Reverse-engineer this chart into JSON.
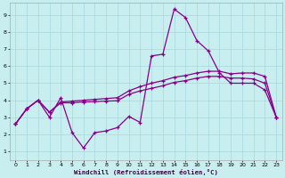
{
  "xlabel": "Windchill (Refroidissement éolien,°C)",
  "bg_color": "#c8eef0",
  "grid_color": "#a8d8dc",
  "line_color": "#880088",
  "xlim": [
    -0.5,
    23.5
  ],
  "ylim": [
    0.5,
    9.7
  ],
  "xticks": [
    0,
    1,
    2,
    3,
    4,
    5,
    6,
    7,
    8,
    9,
    10,
    11,
    12,
    13,
    14,
    15,
    16,
    17,
    18,
    19,
    20,
    21,
    22,
    23
  ],
  "yticks": [
    1,
    2,
    3,
    4,
    5,
    6,
    7,
    8,
    9
  ],
  "line1_x": [
    0,
    1,
    2,
    3,
    4,
    5,
    6,
    7,
    8,
    9,
    10,
    11,
    12,
    13,
    14,
    15,
    16,
    17,
    18,
    19,
    20,
    21,
    22,
    23
  ],
  "line1_y": [
    2.6,
    3.5,
    4.0,
    3.0,
    4.15,
    2.1,
    1.2,
    2.1,
    2.2,
    2.4,
    3.05,
    2.7,
    6.6,
    6.7,
    9.35,
    8.85,
    7.5,
    6.9,
    5.6,
    5.0,
    5.0,
    5.0,
    4.6,
    3.0
  ],
  "line2_x": [
    0,
    1,
    2,
    3,
    4,
    5,
    6,
    7,
    8,
    9,
    10,
    11,
    12,
    13,
    14,
    15,
    16,
    17,
    18,
    19,
    20,
    21,
    22,
    23
  ],
  "line2_y": [
    2.6,
    3.5,
    4.0,
    3.3,
    3.9,
    3.95,
    4.0,
    4.05,
    4.1,
    4.15,
    4.55,
    4.8,
    5.0,
    5.15,
    5.35,
    5.45,
    5.6,
    5.7,
    5.7,
    5.55,
    5.6,
    5.6,
    5.4,
    3.0
  ],
  "line3_x": [
    0,
    1,
    2,
    3,
    4,
    5,
    6,
    7,
    8,
    9,
    10,
    11,
    12,
    13,
    14,
    15,
    16,
    17,
    18,
    19,
    20,
    21,
    22,
    23
  ],
  "line3_y": [
    2.6,
    3.5,
    4.0,
    3.3,
    3.85,
    3.85,
    3.9,
    3.92,
    3.95,
    3.97,
    4.35,
    4.55,
    4.7,
    4.85,
    5.05,
    5.15,
    5.3,
    5.4,
    5.4,
    5.3,
    5.3,
    5.25,
    5.0,
    3.0
  ]
}
